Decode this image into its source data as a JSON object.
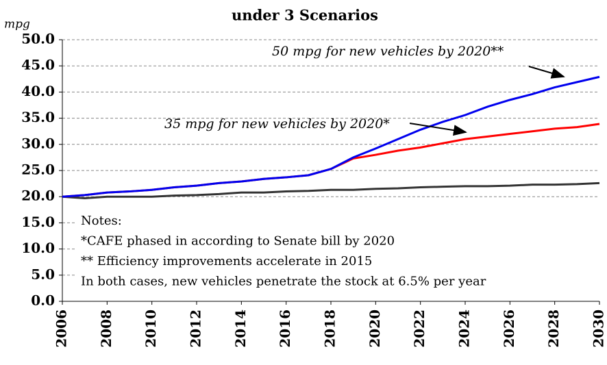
{
  "chart_data": {
    "type": "line",
    "title": "under 3 Scenarios",
    "ylabel": "mpg",
    "x": [
      2006,
      2007,
      2008,
      2009,
      2010,
      2011,
      2012,
      2013,
      2014,
      2015,
      2016,
      2017,
      2018,
      2019,
      2020,
      2021,
      2022,
      2023,
      2024,
      2025,
      2026,
      2027,
      2028,
      2029,
      2030
    ],
    "series": [
      {
        "color": "#333333",
        "values": [
          20.0,
          19.7,
          20.0,
          20.0,
          20.0,
          20.2,
          20.3,
          20.5,
          20.8,
          20.8,
          21.0,
          21.1,
          21.3,
          21.3,
          21.5,
          21.6,
          21.8,
          21.9,
          22.0,
          22.0,
          22.1,
          22.3,
          22.3,
          22.4,
          22.6
        ]
      },
      {
        "color": "#ff0000",
        "values": [
          20.0,
          20.3,
          20.8,
          21.0,
          21.3,
          21.8,
          22.1,
          22.6,
          22.9,
          23.4,
          23.7,
          24.1,
          25.3,
          27.3,
          28.0,
          28.8,
          29.4,
          30.2,
          31.0,
          31.5,
          32.0,
          32.5,
          33.0,
          33.3,
          33.9
        ]
      },
      {
        "color": "#0000ee",
        "values": [
          20.0,
          20.3,
          20.8,
          21.0,
          21.3,
          21.8,
          22.1,
          22.6,
          22.9,
          23.4,
          23.7,
          24.1,
          25.3,
          27.5,
          29.2,
          31.0,
          32.8,
          34.3,
          35.6,
          37.2,
          38.5,
          39.6,
          40.9,
          41.9,
          42.9
        ]
      }
    ],
    "xlim": [
      2006,
      2030
    ],
    "xticks": [
      2006,
      2008,
      2010,
      2012,
      2014,
      2016,
      2018,
      2020,
      2022,
      2024,
      2026,
      2028,
      2030
    ],
    "ylim": [
      0,
      50
    ],
    "yticks": [
      {
        "value": 0,
        "label": "0.0"
      },
      {
        "value": 5,
        "label": "5.0"
      },
      {
        "value": 10,
        "label": "10.0"
      },
      {
        "value": 15,
        "label": "15.0"
      },
      {
        "value": 20,
        "label": "20.0"
      },
      {
        "value": 25,
        "label": "25.0"
      },
      {
        "value": 30,
        "label": "30.0"
      },
      {
        "value": 35,
        "label": "35.0"
      },
      {
        "value": 40,
        "label": "40.0"
      },
      {
        "value": 45,
        "label": "45.0"
      },
      {
        "value": 50,
        "label": "50.0"
      }
    ],
    "grid": true,
    "annotations": [
      "50 mpg for new vehicles by 2020**",
      "35 mpg for new vehicles by 2020*"
    ],
    "notes": [
      "Notes:",
      "*CAFE phased in according to Senate bill by 2020",
      "** Efficiency improvements accelerate in 2015",
      "In both cases, new vehicles penetrate the stock at 6.5% per year"
    ]
  }
}
